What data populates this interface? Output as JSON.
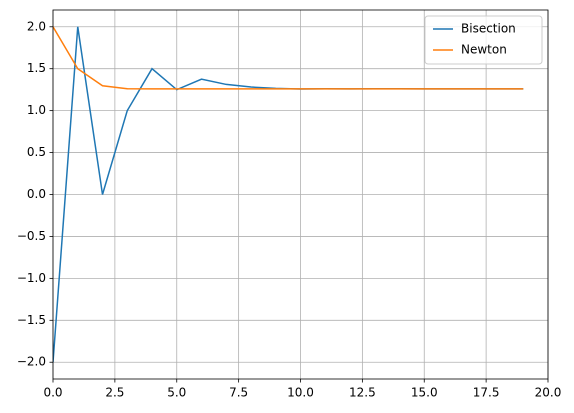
{
  "chart_data": {
    "type": "line",
    "x": [
      0,
      1,
      2,
      3,
      4,
      5,
      6,
      7,
      8,
      9,
      10,
      11,
      12,
      13,
      14,
      15,
      16,
      17,
      18,
      19
    ],
    "series": [
      {
        "name": "Bisection",
        "color": "#1f77b4",
        "values": [
          -2,
          2,
          0,
          1,
          1.5,
          1.25,
          1.375,
          1.3125,
          1.28125,
          1.265625,
          1.2578125,
          1.2617188,
          1.2597656,
          1.2607422,
          1.2602539,
          1.2600098,
          1.2598877,
          1.2599487,
          1.2599182,
          1.259903
        ]
      },
      {
        "name": "Newton",
        "color": "#ff7f0e",
        "values": [
          2,
          1.5,
          1.2962963,
          1.2609322,
          1.2599219,
          1.259921,
          1.259921,
          1.259921,
          1.259921,
          1.259921,
          1.259921,
          1.259921,
          1.259921,
          1.259921,
          1.259921,
          1.259921,
          1.259921,
          1.259921,
          1.259921,
          1.259921
        ]
      }
    ],
    "xlim": [
      0,
      20
    ],
    "ylim": [
      -2.2,
      2.2
    ],
    "xticks": [
      {
        "value": 0,
        "label": "0.0"
      },
      {
        "value": 2.5,
        "label": "2.5"
      },
      {
        "value": 5,
        "label": "5.0"
      },
      {
        "value": 7.5,
        "label": "7.5"
      },
      {
        "value": 10,
        "label": "10.0"
      },
      {
        "value": 12.5,
        "label": "12.5"
      },
      {
        "value": 15,
        "label": "15.0"
      },
      {
        "value": 17.5,
        "label": "17.5"
      },
      {
        "value": 20,
        "label": "20.0"
      }
    ],
    "yticks": [
      {
        "value": -2,
        "label": "−2.0"
      },
      {
        "value": -1.5,
        "label": "−1.5"
      },
      {
        "value": -1,
        "label": "−1.0"
      },
      {
        "value": -0.5,
        "label": "−0.5"
      },
      {
        "value": 0,
        "label": "0.0"
      },
      {
        "value": 0.5,
        "label": "0.5"
      },
      {
        "value": 1,
        "label": "1.0"
      },
      {
        "value": 1.5,
        "label": "1.5"
      },
      {
        "value": 2,
        "label": "2.0"
      }
    ],
    "grid": true,
    "legend": "upper-right"
  }
}
